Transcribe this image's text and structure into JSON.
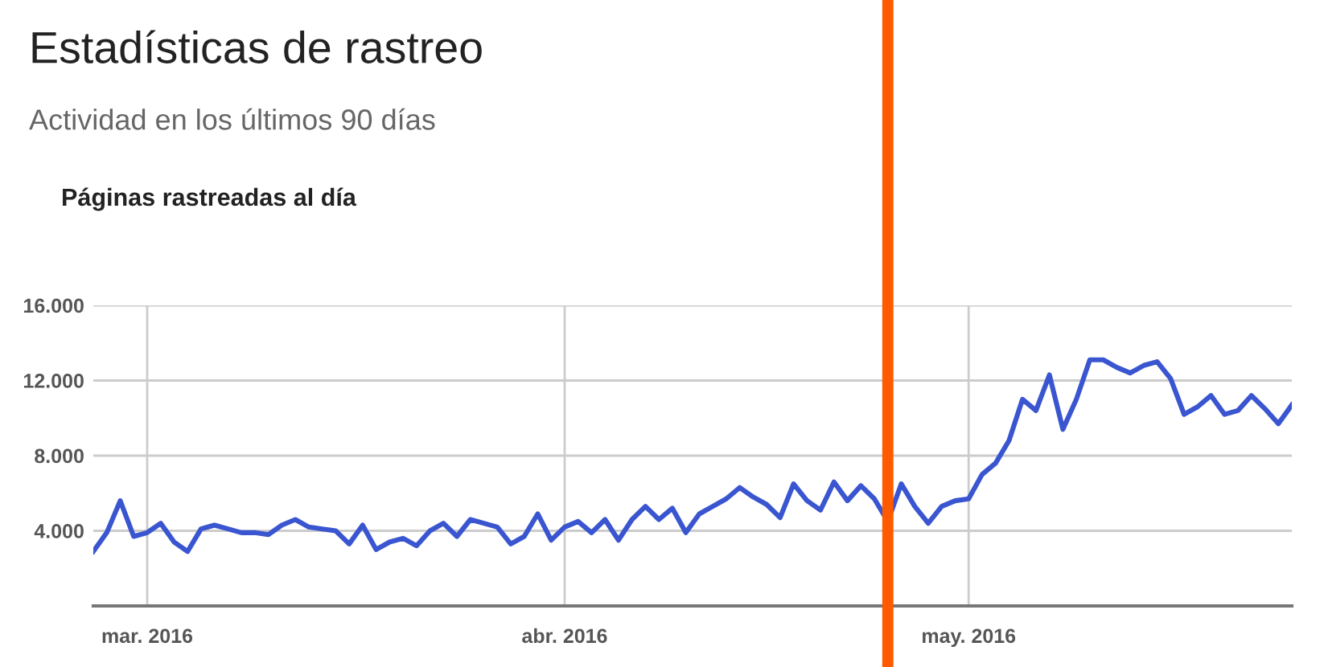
{
  "chart_data": {
    "type": "line",
    "title": "Estadísticas de rastreo",
    "subtitle": "Actividad en los últimos 90 días",
    "annotations": [
      "Páginas rastreadas al día"
    ],
    "x": [
      "2016-02-26",
      "2016-02-27",
      "2016-02-28",
      "2016-02-29",
      "2016-03-01",
      "2016-03-02",
      "2016-03-03",
      "2016-03-04",
      "2016-03-05",
      "2016-03-06",
      "2016-03-07",
      "2016-03-08",
      "2016-03-09",
      "2016-03-10",
      "2016-03-11",
      "2016-03-12",
      "2016-03-13",
      "2016-03-14",
      "2016-03-15",
      "2016-03-16",
      "2016-03-17",
      "2016-03-18",
      "2016-03-19",
      "2016-03-20",
      "2016-03-21",
      "2016-03-22",
      "2016-03-23",
      "2016-03-24",
      "2016-03-25",
      "2016-03-26",
      "2016-03-27",
      "2016-03-28",
      "2016-03-29",
      "2016-03-30",
      "2016-03-31",
      "2016-04-01",
      "2016-04-02",
      "2016-04-03",
      "2016-04-04",
      "2016-04-05",
      "2016-04-06",
      "2016-04-07",
      "2016-04-08",
      "2016-04-09",
      "2016-04-10",
      "2016-04-11",
      "2016-04-12",
      "2016-04-13",
      "2016-04-14",
      "2016-04-15",
      "2016-04-16",
      "2016-04-17",
      "2016-04-18",
      "2016-04-19",
      "2016-04-20",
      "2016-04-21",
      "2016-04-22",
      "2016-04-23",
      "2016-04-24",
      "2016-04-25",
      "2016-04-26",
      "2016-04-27",
      "2016-04-28",
      "2016-04-29",
      "2016-04-30",
      "2016-05-01",
      "2016-05-02",
      "2016-05-03",
      "2016-05-04",
      "2016-05-05",
      "2016-05-06",
      "2016-05-07",
      "2016-05-08",
      "2016-05-09",
      "2016-05-10",
      "2016-05-11",
      "2016-05-12",
      "2016-05-13",
      "2016-05-14",
      "2016-05-15",
      "2016-05-16",
      "2016-05-17",
      "2016-05-18",
      "2016-05-19",
      "2016-05-20",
      "2016-05-21",
      "2016-05-22",
      "2016-05-23",
      "2016-05-24",
      "2016-05-25"
    ],
    "series": [
      {
        "color": "#3a55d0",
        "values": [
          2900,
          3900,
          5600,
          3700,
          3900,
          4400,
          3400,
          2900,
          4100,
          4300,
          4100,
          3900,
          3900,
          3800,
          4300,
          4600,
          4200,
          4100,
          4000,
          3300,
          4300,
          3000,
          3400,
          3600,
          3200,
          4000,
          4400,
          3700,
          4600,
          4400,
          4200,
          3300,
          3700,
          4900,
          3500,
          4200,
          4500,
          3900,
          4600,
          3500,
          4600,
          5300,
          4600,
          5200,
          3900,
          4900,
          5300,
          5700,
          6300,
          5800,
          5400,
          4700,
          6500,
          5600,
          5100,
          6600,
          5600,
          6400,
          5700,
          4500,
          6500,
          5300,
          4400,
          5300,
          5600,
          5700,
          7000,
          7600,
          8800,
          11000,
          10400,
          12300,
          9400,
          11000,
          13100,
          13100,
          12700,
          12400,
          12800,
          13000,
          12100,
          10200,
          10600,
          11200,
          10200,
          10400,
          11200,
          10500,
          9700,
          10700
        ]
      }
    ],
    "xlim": [
      "2016-02-26",
      "2016-05-25"
    ],
    "xticks": [
      {
        "value": "2016-03-01",
        "label": "mar. 2016"
      },
      {
        "value": "2016-04-01",
        "label": "abr. 2016"
      },
      {
        "value": "2016-05-01",
        "label": "may. 2016"
      }
    ],
    "ylim": [
      0,
      16000
    ],
    "yticks": [
      {
        "value": 4000,
        "label": "4.000"
      },
      {
        "value": 8000,
        "label": "8.000"
      },
      {
        "value": 12000,
        "label": "12.000"
      },
      {
        "value": 16000,
        "label": "16.000"
      }
    ],
    "ref_lines": [
      {
        "axis": "x",
        "value": "2016-04-25",
        "color": "#ff5a00"
      }
    ],
    "grid": true
  }
}
